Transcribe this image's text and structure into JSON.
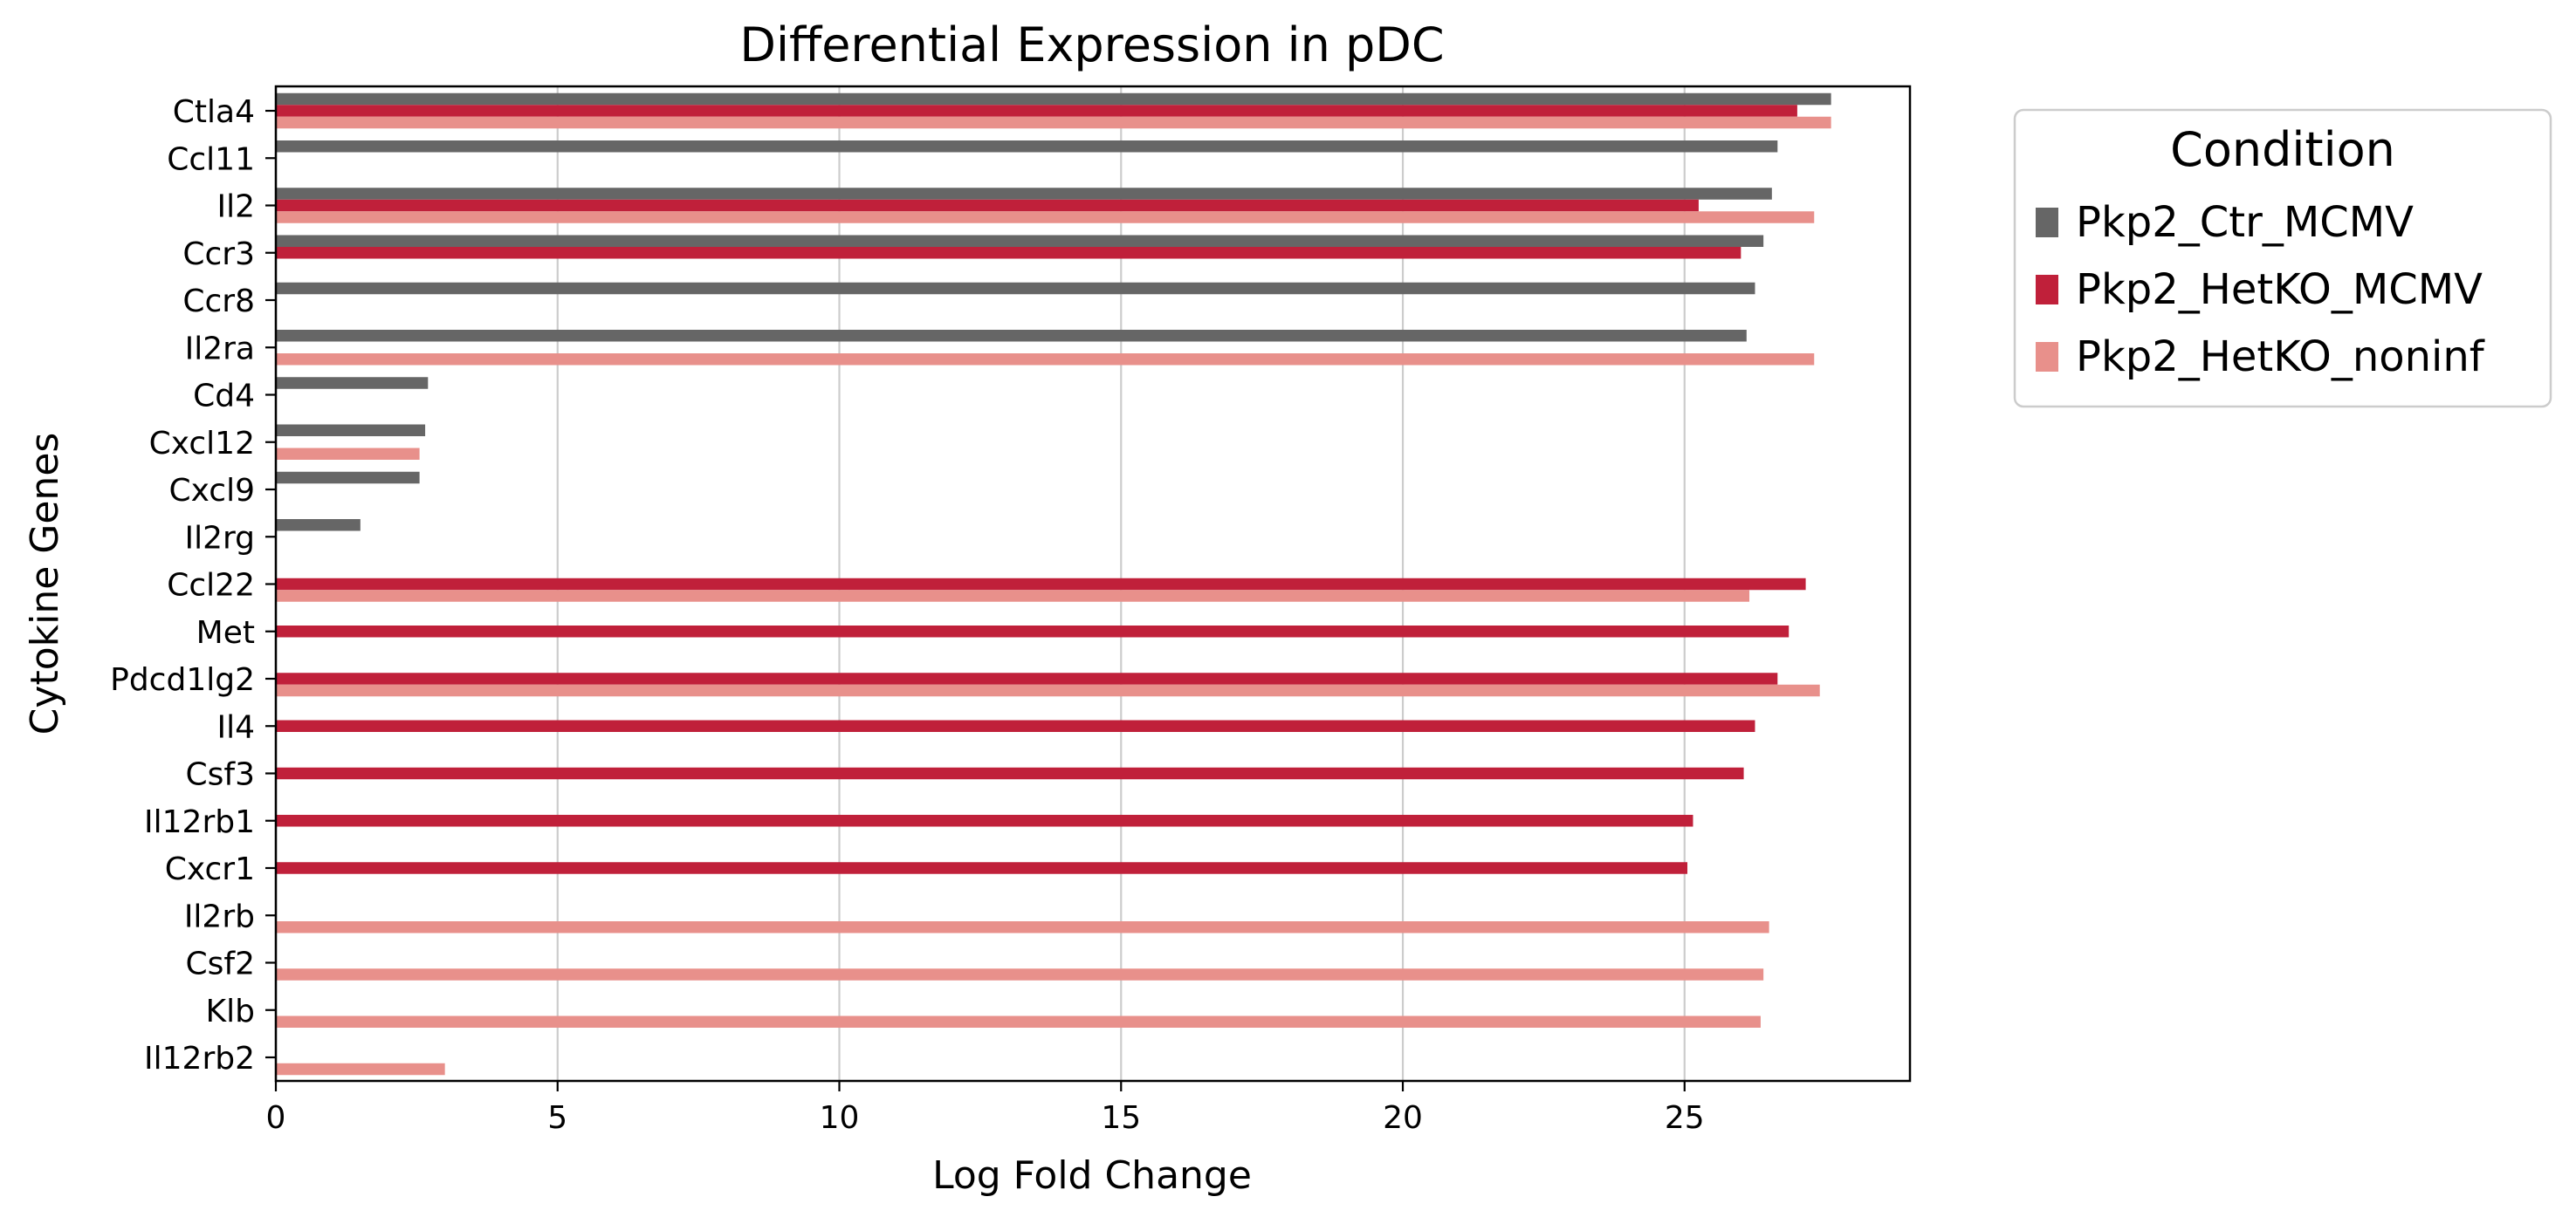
{
  "chart_data": {
    "type": "bar",
    "orientation": "horizontal",
    "title": "Differential Expression in pDC",
    "xlabel": "Log Fold Change",
    "ylabel": "Cytokine Genes",
    "xlim": [
      0,
      29
    ],
    "xticks": [
      0,
      5,
      10,
      15,
      20,
      25
    ],
    "grid": "vertical",
    "legend_title": "Condition",
    "legend_position": "outside-top-right",
    "categories": [
      "Ctla4",
      "Ccl11",
      "Il2",
      "Ccr3",
      "Ccr8",
      "Il2ra",
      "Cd4",
      "Cxcl12",
      "Cxcl9",
      "Il2rg",
      "Ccl22",
      "Met",
      "Pdcd1lg2",
      "Il4",
      "Csf3",
      "Il12rb1",
      "Cxcr1",
      "Il2rb",
      "Csf2",
      "Klb",
      "Il12rb2"
    ],
    "series": [
      {
        "name": "Pkp2_Ctr_MCMV",
        "color": "#666666",
        "values": [
          27.6,
          26.65,
          26.55,
          26.4,
          26.25,
          26.1,
          2.7,
          2.65,
          2.55,
          1.5,
          null,
          null,
          null,
          null,
          null,
          null,
          null,
          null,
          null,
          null,
          null
        ]
      },
      {
        "name": "Pkp2_HetKO_MCMV",
        "color": "#c0203a",
        "values": [
          27.0,
          null,
          25.25,
          26.0,
          null,
          null,
          null,
          null,
          null,
          null,
          27.15,
          26.85,
          26.65,
          26.25,
          26.05,
          25.15,
          25.05,
          null,
          null,
          null,
          null
        ]
      },
      {
        "name": "Pkp2_HetKO_noninf",
        "color": "#e8908b",
        "values": [
          27.6,
          null,
          27.3,
          null,
          null,
          27.3,
          null,
          2.55,
          null,
          null,
          26.15,
          null,
          27.4,
          null,
          null,
          null,
          null,
          26.5,
          26.4,
          26.35,
          3.0
        ]
      }
    ]
  }
}
